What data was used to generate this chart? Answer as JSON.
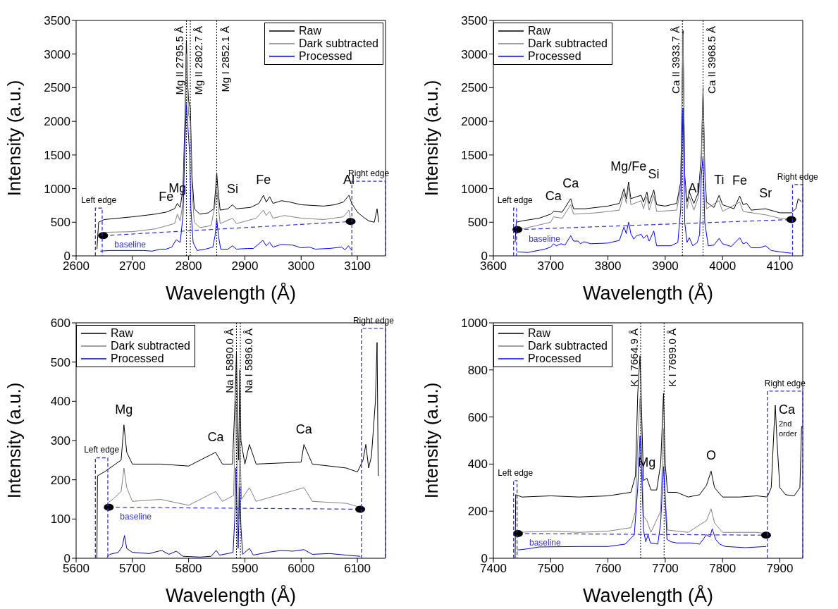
{
  "chart_data": [
    {
      "type": "line",
      "xlabel": "Wavelength (Å)",
      "ylabel": "Intensity (a.u.)",
      "xlim": [
        2600,
        3150
      ],
      "xticks": [
        2600,
        2700,
        2800,
        2900,
        3000,
        3100
      ],
      "ylim": [
        0,
        3500
      ],
      "yticks": [
        0,
        500,
        1000,
        1500,
        2000,
        2500,
        3000,
        3500
      ],
      "legend": "top right",
      "series": [
        {
          "name": "Raw",
          "color": "#000000",
          "x": [
            2637,
            2640,
            2650,
            2700,
            2740,
            2760,
            2775,
            2780,
            2785,
            2790,
            2794,
            2796,
            2798,
            2800,
            2803,
            2806,
            2810,
            2820,
            2835,
            2845,
            2848,
            2850,
            2852,
            2856,
            2870,
            2878,
            2885,
            2910,
            2925,
            2933,
            2938,
            2944,
            2950,
            2965,
            2980,
            3000,
            3020,
            3040,
            3060,
            3075,
            3085,
            3090,
            3100,
            3110,
            3120,
            3130,
            3135,
            3138
          ],
          "values": [
            100,
            500,
            540,
            580,
            620,
            650,
            700,
            780,
            720,
            1000,
            2200,
            3200,
            2600,
            2300,
            2200,
            1200,
            700,
            620,
            640,
            700,
            1000,
            1230,
            1000,
            680,
            700,
            760,
            700,
            720,
            780,
            900,
            800,
            880,
            780,
            820,
            800,
            760,
            750,
            740,
            760,
            800,
            900,
            780,
            650,
            580,
            520,
            500,
            700,
            500
          ]
        },
        {
          "name": "Dark subtracted",
          "color": "#808080",
          "x": [
            2640,
            2650,
            2700,
            2740,
            2775,
            2780,
            2785,
            2790,
            2794,
            2796,
            2798,
            2800,
            2803,
            2806,
            2810,
            2820,
            2840,
            2848,
            2850,
            2852,
            2856,
            2878,
            2885,
            2920,
            2933,
            2938,
            2944,
            2950,
            2970,
            3000,
            3040,
            3075,
            3085,
            3088
          ],
          "values": [
            300,
            350,
            360,
            400,
            480,
            620,
            520,
            800,
            2000,
            3000,
            2500,
            2100,
            2000,
            1000,
            500,
            420,
            450,
            800,
            1000,
            800,
            480,
            560,
            480,
            560,
            680,
            600,
            660,
            560,
            600,
            560,
            540,
            580,
            680,
            540
          ]
        },
        {
          "name": "Processed",
          "color": "#0000ff",
          "x": [
            2643,
            2660,
            2700,
            2720,
            2735,
            2750,
            2760,
            2770,
            2778,
            2785,
            2790,
            2794,
            2796,
            2798,
            2802,
            2804,
            2808,
            2815,
            2830,
            2843,
            2847,
            2850,
            2853,
            2857,
            2870,
            2878,
            2885,
            2905,
            2915,
            2932,
            2938,
            2944,
            2950,
            2965,
            2985,
            3000,
            3015,
            3025,
            3050,
            3072,
            3078,
            3084,
            3090
          ],
          "values": [
            70,
            80,
            80,
            80,
            70,
            100,
            100,
            130,
            240,
            200,
            600,
            1800,
            2250,
            2000,
            1500,
            700,
            200,
            80,
            100,
            130,
            300,
            550,
            300,
            100,
            100,
            150,
            100,
            110,
            110,
            230,
            150,
            200,
            130,
            170,
            160,
            120,
            130,
            100,
            110,
            130,
            90,
            150,
            80
          ]
        },
        {
          "name": "baseline",
          "color": "#3333cc",
          "line_style": "dashed",
          "marker": "circle",
          "x": [
            2648,
            3088
          ],
          "values": [
            300,
            510
          ]
        }
      ],
      "ref_lines": [
        {
          "axis": "x",
          "value": 2796,
          "label": "Mg II 2795.5 Å",
          "line_style": "dotted"
        },
        {
          "axis": "x",
          "value": 2803,
          "label": "Mg II 2802.7 Å",
          "line_style": "dotted"
        },
        {
          "axis": "x",
          "value": 2850,
          "label": "Mg I 2852.1 Å",
          "line_style": "dotted"
        }
      ],
      "annotations": [
        {
          "text": "Fe",
          "x": 2760,
          "y": 650
        },
        {
          "text": "Mg",
          "x": 2780,
          "y": 780
        },
        {
          "text": "Si",
          "x": 2878,
          "y": 760
        },
        {
          "text": "Fe",
          "x": 2933,
          "y": 900
        },
        {
          "text": "Al",
          "x": 3085,
          "y": 900
        },
        "Left edge",
        "Right edge"
      ]
    },
    {
      "type": "line",
      "xlabel": "Wavelength (Å)",
      "ylabel": "Intensity (a.u.)",
      "xlim": [
        3600,
        4140
      ],
      "xticks": [
        3600,
        3700,
        3800,
        3900,
        4000,
        4100
      ],
      "ylim": [
        0,
        3500
      ],
      "yticks": [
        0,
        500,
        1000,
        1500,
        2000,
        2500,
        3000,
        3500
      ],
      "legend": "top left",
      "series": [
        {
          "name": "Raw",
          "color": "#000000",
          "x": [
            3638,
            3640,
            3650,
            3680,
            3700,
            3705,
            3720,
            3735,
            3740,
            3760,
            3780,
            3800,
            3820,
            3828,
            3832,
            3836,
            3840,
            3850,
            3858,
            3862,
            3868,
            3872,
            3880,
            3885,
            3900,
            3920,
            3927,
            3931,
            3934,
            3938,
            3942,
            3950,
            3958,
            3963,
            3966,
            3969,
            3972,
            3985,
            3994,
            4000,
            4020,
            4030,
            4036,
            4042,
            4050,
            4075,
            4100,
            4120,
            4128,
            4132,
            4138
          ],
          "values": [
            200,
            500,
            520,
            560,
            620,
            660,
            650,
            850,
            700,
            700,
            720,
            740,
            780,
            1000,
            850,
            1100,
            850,
            880,
            900,
            800,
            950,
            780,
            980,
            760,
            740,
            780,
            1100,
            3350,
            1200,
            800,
            950,
            780,
            950,
            1500,
            2500,
            1300,
            800,
            720,
            900,
            760,
            700,
            890,
            760,
            780,
            680,
            700,
            640,
            640,
            700,
            850,
            800
          ]
        },
        {
          "name": "Dark subtracted",
          "color": "#808080",
          "x": [
            3642,
            3660,
            3700,
            3705,
            3720,
            3735,
            3740,
            3780,
            3820,
            3828,
            3832,
            3836,
            3840,
            3858,
            3862,
            3868,
            3872,
            3880,
            3885,
            3920,
            3927,
            3931,
            3934,
            3938,
            3942,
            3950,
            3958,
            3963,
            3966,
            3969,
            3972,
            3994,
            4000,
            4030,
            4036,
            4075,
            4100,
            4120
          ],
          "values": [
            380,
            420,
            500,
            580,
            560,
            760,
            620,
            640,
            680,
            930,
            780,
            1050,
            760,
            820,
            700,
            880,
            680,
            900,
            660,
            680,
            1000,
            3300,
            1100,
            700,
            880,
            680,
            880,
            1400,
            2450,
            1200,
            700,
            820,
            660,
            800,
            660,
            610,
            560,
            540
          ]
        },
        {
          "name": "Processed",
          "color": "#0000ff",
          "x": [
            3642,
            3660,
            3690,
            3700,
            3705,
            3710,
            3718,
            3725,
            3735,
            3740,
            3748,
            3752,
            3758,
            3770,
            3800,
            3820,
            3828,
            3832,
            3836,
            3840,
            3845,
            3850,
            3858,
            3862,
            3868,
            3872,
            3880,
            3885,
            3910,
            3922,
            3927,
            3931,
            3934,
            3938,
            3942,
            3948,
            3956,
            3960,
            3963,
            3966,
            3969,
            3975,
            3985,
            3994,
            4000,
            4015,
            4030,
            4036,
            4042,
            4050,
            4065,
            4075,
            4085,
            4100,
            4120
          ],
          "values": [
            60,
            50,
            100,
            130,
            180,
            150,
            180,
            160,
            300,
            220,
            220,
            180,
            210,
            180,
            190,
            230,
            430,
            330,
            500,
            330,
            250,
            300,
            320,
            260,
            310,
            220,
            370,
            150,
            150,
            200,
            700,
            2200,
            500,
            200,
            270,
            150,
            200,
            320,
            1200,
            1480,
            500,
            150,
            160,
            260,
            180,
            140,
            270,
            180,
            200,
            120,
            120,
            150,
            80,
            60,
            40
          ]
        },
        {
          "name": "baseline",
          "color": "#3333cc",
          "line_style": "dashed",
          "marker": "circle",
          "x": [
            3642,
            4120
          ],
          "values": [
            390,
            540
          ]
        }
      ],
      "ref_lines": [
        {
          "axis": "x",
          "value": 3930,
          "label": "Ca II 3933.7 Å",
          "line_style": "dotted"
        },
        {
          "axis": "x",
          "value": 3966,
          "label": "Ca II 3968.5 Å",
          "line_style": "dotted"
        }
      ],
      "annotations": [
        {
          "text": "Ca",
          "x": 3705,
          "y": 660
        },
        {
          "text": "Ca",
          "x": 3735,
          "y": 850
        },
        {
          "text": "Mg/Fe",
          "x": 3836,
          "y": 1100
        },
        {
          "text": "Si",
          "x": 3880,
          "y": 980
        },
        {
          "text": "Al",
          "x": 3950,
          "y": 780
        },
        {
          "text": "Ti",
          "x": 3994,
          "y": 900
        },
        {
          "text": "Fe",
          "x": 4030,
          "y": 890
        },
        {
          "text": "Sr",
          "x": 4075,
          "y": 700
        },
        "Left edge",
        "Right edge"
      ]
    },
    {
      "type": "line",
      "xlabel": "Wavelength (Å)",
      "ylabel": "Intensity (a.u.)",
      "xlim": [
        5600,
        6150
      ],
      "xticks": [
        5600,
        5700,
        5800,
        5900,
        6000,
        6100
      ],
      "ylim": [
        0,
        600
      ],
      "yticks": [
        0,
        100,
        200,
        300,
        400,
        500,
        600
      ],
      "legend": "top left",
      "series": [
        {
          "name": "Raw",
          "color": "#000000",
          "x": [
            5637,
            5638,
            5650,
            5660,
            5680,
            5685,
            5690,
            5700,
            5750,
            5800,
            5848,
            5860,
            5878,
            5883,
            5885,
            5887,
            5889,
            5891,
            5893,
            5900,
            5908,
            5920,
            6000,
            6005,
            6020,
            6080,
            6100,
            6110,
            6115,
            6120,
            6125,
            6132,
            6135,
            6137
          ],
          "values": [
            0,
            210,
            220,
            230,
            250,
            340,
            270,
            240,
            240,
            235,
            270,
            240,
            240,
            420,
            525,
            350,
            250,
            480,
            300,
            240,
            290,
            240,
            245,
            290,
            240,
            230,
            220,
            250,
            290,
            230,
            260,
            400,
            550,
            210
          ]
        },
        {
          "name": "Dark subtracted",
          "color": "#808080",
          "x": [
            5655,
            5665,
            5680,
            5685,
            5690,
            5700,
            5750,
            5800,
            5848,
            5860,
            5880,
            5884,
            5886,
            5889,
            5891,
            5894,
            5908,
            5920,
            6005,
            6020,
            6080,
            6105
          ],
          "values": [
            140,
            150,
            170,
            230,
            180,
            145,
            150,
            135,
            170,
            145,
            160,
            400,
            300,
            100,
            300,
            150,
            180,
            145,
            180,
            145,
            140,
            130
          ]
        },
        {
          "name": "Processed",
          "color": "#000099",
          "x": [
            5655,
            5660,
            5675,
            5682,
            5686,
            5690,
            5700,
            5730,
            5752,
            5765,
            5778,
            5790,
            5820,
            5840,
            5849,
            5855,
            5870,
            5879,
            5882,
            5884,
            5886,
            5888,
            5891,
            5893,
            5896,
            5908,
            5915,
            5940,
            5965,
            5985,
            6005,
            6020,
            6050,
            6080,
            6105
          ],
          "values": [
            2,
            10,
            15,
            30,
            58,
            25,
            15,
            12,
            20,
            10,
            18,
            5,
            3,
            5,
            20,
            8,
            12,
            15,
            100,
            230,
            120,
            25,
            180,
            80,
            10,
            25,
            8,
            15,
            20,
            18,
            22,
            10,
            12,
            8,
            5
          ]
        },
        {
          "name": "baseline",
          "color": "#3333cc",
          "line_style": "dashed",
          "marker": "circle",
          "x": [
            5658,
            6105
          ],
          "values": [
            130,
            125
          ]
        }
      ],
      "ref_lines": [
        {
          "axis": "x",
          "value": 5885,
          "label": "Na I 5890.0 Å",
          "line_style": "dotted"
        },
        {
          "axis": "x",
          "value": 5892,
          "label": "Na I 5896.0 Å",
          "line_style": "dotted"
        }
      ],
      "annotations": [
        {
          "text": "Mg",
          "x": 5685,
          "y": 340
        },
        {
          "text": "Ca",
          "x": 5848,
          "y": 270
        },
        {
          "text": "Ca",
          "x": 6005,
          "y": 290
        },
        "Left edge",
        "Right edge"
      ]
    },
    {
      "type": "line",
      "xlabel": "Wavelength (Å)",
      "ylabel": "Intensity (a.u.)",
      "xlim": [
        7400,
        7940
      ],
      "xticks": [
        7400,
        7500,
        7600,
        7700,
        7800,
        7900
      ],
      "ylim": [
        0,
        1000
      ],
      "yticks": [
        0,
        200,
        400,
        600,
        800,
        1000
      ],
      "legend": "top left",
      "series": [
        {
          "name": "Raw",
          "color": "#000000",
          "x": [
            7438,
            7439,
            7450,
            7500,
            7550,
            7600,
            7640,
            7648,
            7652,
            7656,
            7659,
            7662,
            7668,
            7675,
            7685,
            7692,
            7697,
            7700,
            7704,
            7720,
            7740,
            7760,
            7772,
            7780,
            7786,
            7800,
            7830,
            7860,
            7878,
            7885,
            7890,
            7892,
            7895,
            7900,
            7910,
            7925,
            7935,
            7938,
            7940
          ],
          "values": [
            0,
            270,
            260,
            265,
            260,
            265,
            280,
            350,
            700,
            860,
            600,
            330,
            340,
            290,
            290,
            400,
            700,
            400,
            280,
            280,
            260,
            270,
            310,
            370,
            300,
            260,
            260,
            265,
            260,
            300,
            560,
            650,
            500,
            300,
            270,
            265,
            300,
            560,
            560
          ]
        },
        {
          "name": "Dark subtracted",
          "color": "#808080",
          "x": [
            7442,
            7500,
            7550,
            7600,
            7640,
            7648,
            7652,
            7656,
            7659,
            7662,
            7668,
            7675,
            7692,
            7697,
            7700,
            7704,
            7740,
            7772,
            7780,
            7786,
            7800,
            7860,
            7876
          ],
          "values": [
            110,
            115,
            110,
            115,
            130,
            200,
            500,
            680,
            450,
            180,
            160,
            110,
            200,
            550,
            250,
            120,
            110,
            160,
            210,
            150,
            110,
            110,
            105
          ]
        },
        {
          "name": "Processed",
          "color": "#0000ff",
          "x": [
            7442,
            7460,
            7480,
            7550,
            7600,
            7630,
            7646,
            7652,
            7656,
            7659,
            7662,
            7666,
            7670,
            7674,
            7687,
            7692,
            7697,
            7700,
            7703,
            7710,
            7720,
            7745,
            7760,
            7772,
            7778,
            7782,
            7788,
            7795,
            7805,
            7840,
            7876
          ],
          "values": [
            35,
            40,
            48,
            50,
            50,
            60,
            100,
            300,
            520,
            350,
            120,
            70,
            100,
            65,
            60,
            150,
            390,
            250,
            80,
            70,
            65,
            65,
            60,
            100,
            90,
            125,
            80,
            60,
            50,
            45,
            50
          ]
        },
        {
          "name": "baseline",
          "color": "#3333cc",
          "line_style": "dashed",
          "marker": "circle",
          "x": [
            7443,
            7876
          ],
          "values": [
            105,
            98
          ]
        }
      ],
      "ref_lines": [
        {
          "axis": "x",
          "value": 7657,
          "label": "K I 7664.9 Å",
          "line_style": "dotted"
        },
        {
          "axis": "x",
          "value": 7698,
          "label": "K I 7699.0 Å",
          "line_style": "dotted"
        }
      ],
      "annotations": [
        {
          "text": "Mg",
          "x": 7668,
          "y": 340
        },
        {
          "text": "O",
          "x": 7780,
          "y": 370
        },
        {
          "text": "Ca 2nd order",
          "x": 7892,
          "y": 650
        },
        "Left edge",
        "Right edge"
      ]
    }
  ]
}
